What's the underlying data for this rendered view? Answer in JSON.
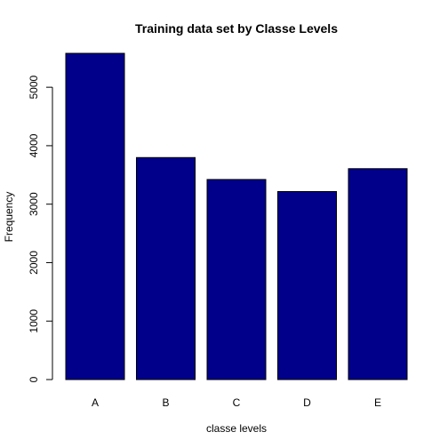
{
  "chart_data": {
    "type": "bar",
    "title": "Training data set by Classe Levels",
    "xlabel": "classe levels",
    "ylabel": "Frequency",
    "categories": [
      "A",
      "B",
      "C",
      "D",
      "E"
    ],
    "values": [
      5580,
      3797,
      3422,
      3216,
      3607
    ],
    "ylim": [
      0,
      5580
    ],
    "yticks": [
      0,
      1000,
      2000,
      3000,
      4000,
      5000
    ],
    "bar_color": "#00008B",
    "grid": false,
    "legend": "none"
  }
}
